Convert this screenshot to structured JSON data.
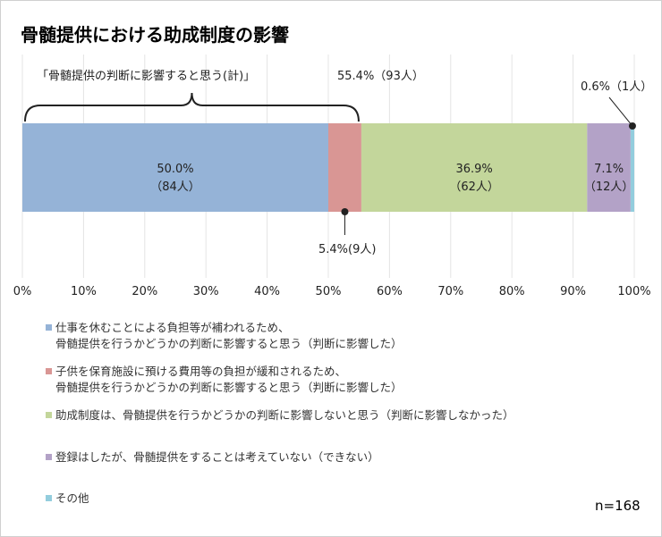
{
  "title": "骨髄提供における助成制度の影響",
  "chart_data": {
    "type": "stacked-bar-horizontal",
    "xlim": [
      0,
      100
    ],
    "x_ticks": [
      "0%",
      "10%",
      "20%",
      "30%",
      "40%",
      "50%",
      "60%",
      "70%",
      "80%",
      "90%",
      "100%"
    ],
    "grid": true,
    "legend_position": "bottom",
    "series": [
      {
        "name": "仕事を休むことによる負担等が補われるため、\n骨髄提供を行うかどうかの判断に影響すると思う（判断に影響した）",
        "value": 50.0,
        "count_label": "（84人）",
        "pct_label": "50.0%",
        "color": "#95b3d7"
      },
      {
        "name": "子供を保育施設に預ける費用等の負担が緩和されるため、\n骨髄提供を行うかどうかの判断に影響すると思う（判断に影響した）",
        "value": 5.4,
        "count_label": "(9人)",
        "pct_label": "5.4%",
        "color": "#d99694"
      },
      {
        "name": "助成制度は、骨髄提供を行うかどうかの判断に影響しないと思う（判断に影響しなかった）",
        "value": 36.9,
        "count_label": "（62人）",
        "pct_label": "36.9%",
        "color": "#c3d69b"
      },
      {
        "name": "登録はしたが、骨髄提供をすることは考えていない（できない）",
        "value": 7.1,
        "count_label": "（12人）",
        "pct_label": "7.1%",
        "color": "#b3a2c7"
      },
      {
        "name": "その他",
        "value": 0.6,
        "count_label": "（1人）",
        "pct_label": "0.6%",
        "color": "#93cddd"
      }
    ],
    "annotation": {
      "bracket_label": "「骨髄提供の判断に影響すると思う(計)」",
      "bracket_value": "55.4%（93人）"
    },
    "n_label": "n=168"
  }
}
